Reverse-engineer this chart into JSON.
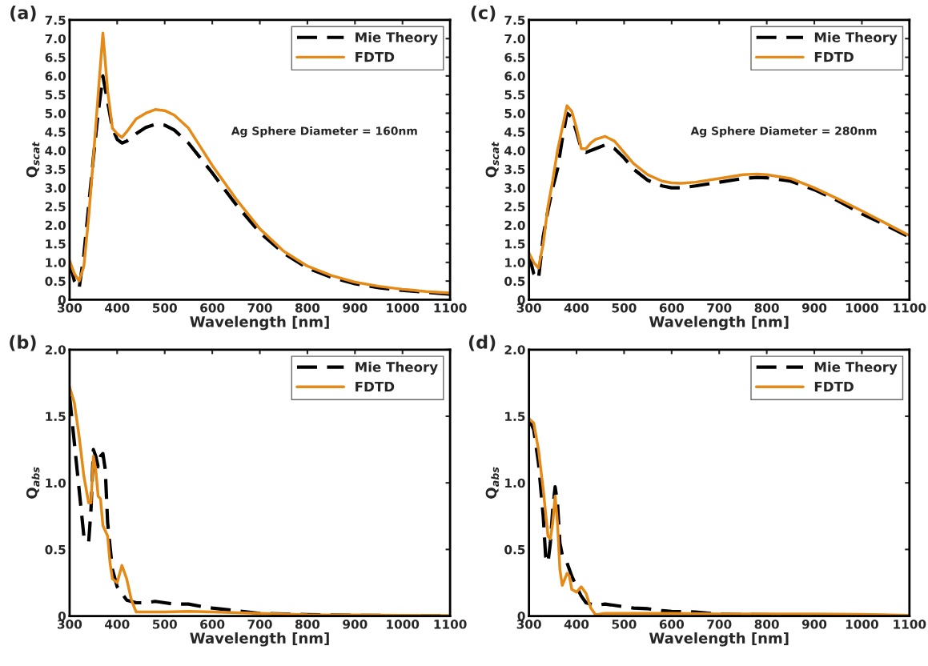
{
  "chart_data": [
    {
      "type": "line",
      "title": "(a)",
      "xlabel": "Wavelength [nm]",
      "ylabel": "Q$_{scat}$",
      "annotations": [
        "Ag Sphere Diameter = 160nm"
      ],
      "xlim": [
        300,
        1100
      ],
      "ylim": [
        0,
        7.5
      ],
      "xticks": [
        300,
        400,
        500,
        600,
        700,
        800,
        900,
        1000,
        1100
      ],
      "yticks": [
        0,
        0.5,
        {
          "value": 1,
          "label": "1.0"
        },
        1.5,
        {
          "value": 2,
          "label": "2.0"
        },
        2.5,
        {
          "value": 3,
          "label": "3.0"
        },
        3.5,
        {
          "value": 4,
          "label": "4.0"
        },
        4.5,
        {
          "value": 5,
          "label": "5.0"
        },
        5.5,
        {
          "value": 6,
          "label": "6.0"
        },
        6.5,
        {
          "value": 7,
          "label": "7.0"
        },
        7.5
      ],
      "grid": false,
      "legend": "top right",
      "series": [
        {
          "name": "Mie Theory",
          "color": "#000000",
          "line_style": "dashed",
          "x": [
            300,
            310,
            320,
            330,
            340,
            350,
            360,
            370,
            380,
            390,
            400,
            410,
            420,
            440,
            460,
            480,
            500,
            520,
            550,
            600,
            650,
            700,
            750,
            800,
            850,
            900,
            950,
            1000,
            1050,
            1100
          ],
          "values": [
            1.0,
            0.5,
            0.3,
            1.2,
            2.5,
            3.8,
            5.0,
            6.0,
            5.3,
            4.6,
            4.3,
            4.2,
            4.25,
            4.45,
            4.62,
            4.7,
            4.68,
            4.55,
            4.2,
            3.4,
            2.55,
            1.8,
            1.25,
            0.85,
            0.6,
            0.43,
            0.32,
            0.25,
            0.2,
            0.15
          ]
        },
        {
          "name": "FDTD",
          "color": "#e68a17",
          "line_style": "solid",
          "x": [
            300,
            310,
            320,
            330,
            340,
            350,
            360,
            370,
            380,
            390,
            400,
            410,
            420,
            440,
            460,
            480,
            500,
            520,
            550,
            600,
            650,
            700,
            750,
            800,
            850,
            900,
            950,
            1000,
            1050,
            1100
          ],
          "values": [
            1.05,
            0.7,
            0.5,
            0.9,
            2.2,
            3.8,
            5.5,
            7.15,
            5.6,
            4.6,
            4.45,
            4.35,
            4.5,
            4.85,
            5.0,
            5.1,
            5.07,
            4.95,
            4.6,
            3.6,
            2.7,
            1.9,
            1.3,
            0.9,
            0.65,
            0.47,
            0.36,
            0.28,
            0.22,
            0.18
          ]
        }
      ]
    },
    {
      "type": "line",
      "title": "(c)",
      "xlabel": "Wavelength [nm]",
      "ylabel": "Q$_{scat}$",
      "annotations": [
        "Ag Sphere Diameter = 280nm"
      ],
      "xlim": [
        300,
        1100
      ],
      "ylim": [
        0,
        7.5
      ],
      "xticks": [
        300,
        400,
        500,
        600,
        700,
        800,
        900,
        1000,
        1100
      ],
      "yticks": [
        0,
        0.5,
        {
          "value": 1,
          "label": "1.0"
        },
        1.5,
        {
          "value": 2,
          "label": "2.0"
        },
        2.5,
        {
          "value": 3,
          "label": "3.0"
        },
        3.5,
        {
          "value": 4,
          "label": "4.0"
        },
        4.5,
        {
          "value": 5,
          "label": "5.0"
        },
        5.5,
        {
          "value": 6,
          "label": "6.0"
        },
        6.5,
        {
          "value": 7,
          "label": "7.0"
        },
        7.5
      ],
      "grid": false,
      "legend": "top right",
      "series": [
        {
          "name": "Mie Theory",
          "color": "#000000",
          "line_style": "dashed",
          "x": [
            300,
            310,
            320,
            330,
            340,
            350,
            360,
            370,
            380,
            390,
            400,
            410,
            420,
            440,
            460,
            480,
            500,
            520,
            550,
            580,
            600,
            620,
            650,
            700,
            750,
            780,
            800,
            850,
            900,
            950,
            1000,
            1050,
            1100
          ],
          "values": [
            1.2,
            0.7,
            0.55,
            1.7,
            2.4,
            3.0,
            3.5,
            4.3,
            5.0,
            4.9,
            4.5,
            4.05,
            3.95,
            4.05,
            4.15,
            4.05,
            3.8,
            3.5,
            3.2,
            3.05,
            3.0,
            3.0,
            3.05,
            3.15,
            3.25,
            3.28,
            3.27,
            3.18,
            2.95,
            2.65,
            2.3,
            2.0,
            1.68
          ]
        },
        {
          "name": "FDTD",
          "color": "#e68a17",
          "line_style": "solid",
          "x": [
            300,
            310,
            320,
            330,
            340,
            350,
            360,
            370,
            380,
            390,
            400,
            410,
            420,
            430,
            440,
            460,
            480,
            500,
            520,
            550,
            580,
            600,
            620,
            650,
            700,
            750,
            780,
            800,
            850,
            900,
            950,
            1000,
            1050,
            1100
          ],
          "values": [
            1.25,
            1.0,
            0.85,
            1.5,
            2.5,
            3.2,
            4.0,
            4.6,
            5.2,
            5.05,
            4.6,
            4.05,
            4.05,
            4.2,
            4.3,
            4.38,
            4.25,
            3.95,
            3.65,
            3.35,
            3.18,
            3.13,
            3.12,
            3.15,
            3.25,
            3.35,
            3.37,
            3.35,
            3.25,
            3.0,
            2.7,
            2.38,
            2.05,
            1.72
          ]
        }
      ]
    },
    {
      "type": "line",
      "title": "(b)",
      "xlabel": "Wavelength [nm]",
      "ylabel": "Q$_{abs}$",
      "xlim": [
        300,
        1100
      ],
      "ylim": [
        0,
        2.0
      ],
      "xticks": [
        300,
        400,
        500,
        600,
        700,
        800,
        900,
        1000,
        1100
      ],
      "yticks": [
        0,
        0.5,
        {
          "value": 1,
          "label": "1.0"
        },
        1.5,
        {
          "value": 2,
          "label": "2.0"
        }
      ],
      "grid": false,
      "legend": "top right",
      "series": [
        {
          "name": "Mie Theory",
          "color": "#000000",
          "line_style": "dashed",
          "x": [
            300,
            310,
            320,
            330,
            340,
            345,
            350,
            355,
            360,
            365,
            370,
            375,
            380,
            390,
            400,
            420,
            440,
            460,
            480,
            500,
            520,
            550,
            580,
            600,
            650,
            700,
            800,
            900,
            1000,
            1100
          ],
          "values": [
            1.65,
            1.3,
            0.95,
            0.6,
            0.55,
            0.8,
            1.25,
            1.2,
            1.12,
            1.2,
            1.22,
            1.1,
            0.7,
            0.35,
            0.22,
            0.12,
            0.1,
            0.1,
            0.11,
            0.1,
            0.09,
            0.09,
            0.07,
            0.06,
            0.04,
            0.02,
            0.01,
            0.005,
            0.003,
            0.002
          ]
        },
        {
          "name": "FDTD",
          "color": "#e68a17",
          "line_style": "solid",
          "x": [
            300,
            310,
            320,
            330,
            340,
            345,
            350,
            355,
            360,
            365,
            370,
            380,
            385,
            390,
            400,
            410,
            420,
            430,
            440,
            460,
            500,
            550,
            600,
            700,
            800,
            900,
            1000,
            1100
          ],
          "values": [
            1.72,
            1.6,
            1.35,
            1.05,
            0.85,
            0.85,
            1.2,
            1.1,
            0.9,
            0.88,
            0.68,
            0.6,
            0.4,
            0.28,
            0.25,
            0.38,
            0.28,
            0.12,
            0.03,
            0.03,
            0.03,
            0.035,
            0.03,
            0.02,
            0.01,
            0.008,
            0.005,
            0.003
          ]
        }
      ]
    },
    {
      "type": "line",
      "title": "(d)",
      "xlabel": "Wavelength [nm]",
      "ylabel": "Q$_{abs}$",
      "xlim": [
        300,
        1100
      ],
      "ylim": [
        0,
        2.0
      ],
      "xticks": [
        300,
        400,
        500,
        600,
        700,
        800,
        900,
        1000,
        1100
      ],
      "yticks": [
        0,
        0.5,
        {
          "value": 1,
          "label": "1.0"
        },
        1.5,
        {
          "value": 2,
          "label": "2.0"
        }
      ],
      "grid": false,
      "legend": "top right",
      "series": [
        {
          "name": "Mie Theory",
          "color": "#000000",
          "line_style": "dashed",
          "x": [
            300,
            310,
            320,
            330,
            335,
            340,
            345,
            350,
            355,
            360,
            365,
            370,
            380,
            390,
            400,
            410,
            420,
            440,
            460,
            480,
            500,
            520,
            550,
            580,
            600,
            650,
            700,
            800,
            900,
            1000,
            1100
          ],
          "values": [
            1.48,
            1.4,
            1.15,
            0.75,
            0.45,
            0.4,
            0.55,
            0.8,
            0.97,
            0.85,
            0.55,
            0.46,
            0.4,
            0.3,
            0.22,
            0.15,
            0.1,
            0.08,
            0.09,
            0.08,
            0.07,
            0.06,
            0.055,
            0.04,
            0.035,
            0.03,
            0.015,
            0.01,
            0.008,
            0.005,
            0.003
          ]
        },
        {
          "name": "FDTD",
          "color": "#e68a17",
          "line_style": "solid",
          "x": [
            300,
            310,
            320,
            330,
            340,
            345,
            350,
            355,
            360,
            365,
            370,
            380,
            385,
            390,
            400,
            410,
            420,
            430,
            440,
            460,
            500,
            600,
            700,
            800,
            900,
            1000,
            1100
          ],
          "values": [
            1.48,
            1.45,
            1.25,
            0.95,
            0.6,
            0.58,
            0.7,
            0.9,
            0.7,
            0.35,
            0.23,
            0.32,
            0.3,
            0.2,
            0.18,
            0.22,
            0.17,
            0.06,
            0.01,
            0.02,
            0.02,
            0.02,
            0.015,
            0.015,
            0.015,
            0.012,
            0.005
          ]
        }
      ]
    }
  ]
}
